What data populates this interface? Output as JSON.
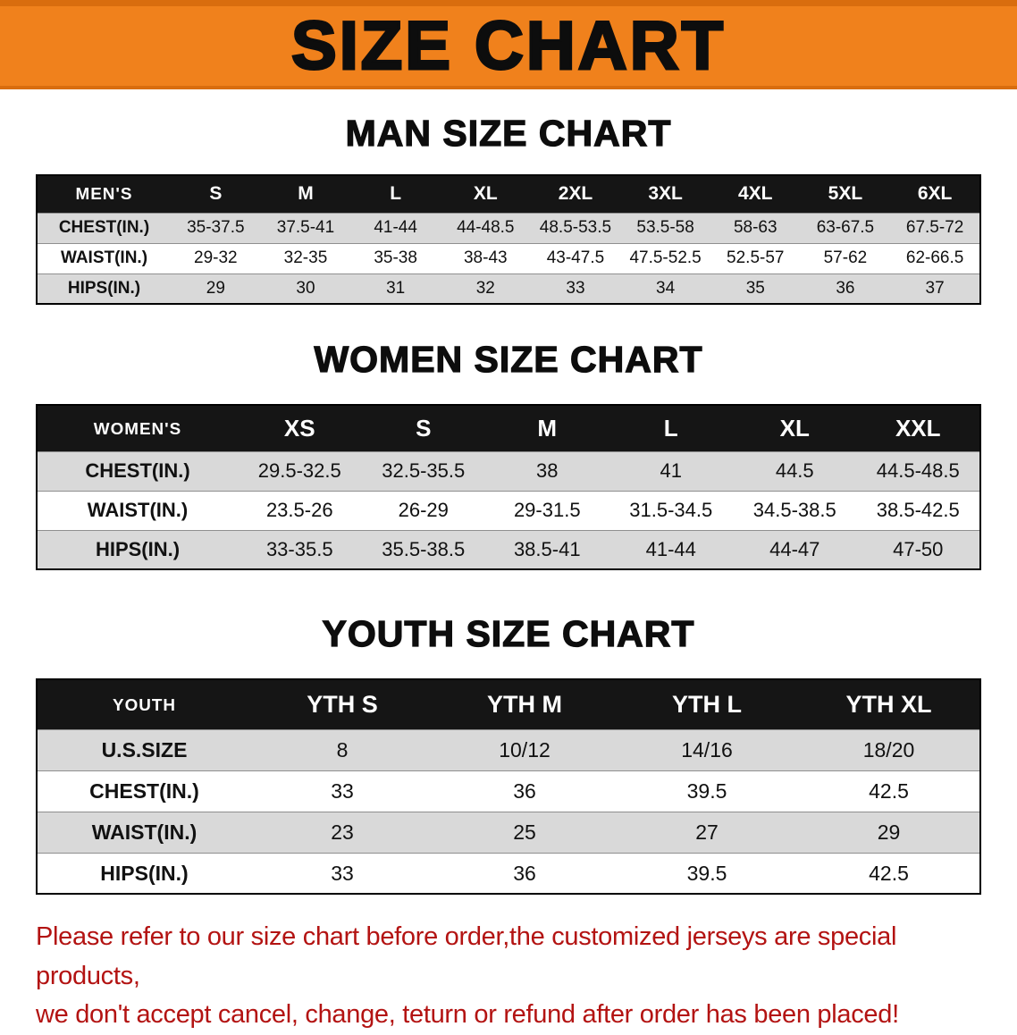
{
  "banner": {
    "title": "SIZE CHART"
  },
  "colors": {
    "banner_bg": "#f0811c",
    "banner_edge": "#d96d0e",
    "table_header_bg": "#151515",
    "table_header_text": "#ffffff",
    "row_gray": "#d9d9d9",
    "row_white": "#ffffff",
    "disclaimer_red": "#b31312"
  },
  "sections": [
    {
      "key": "men",
      "heading": "MAN SIZE CHART",
      "table": {
        "header": [
          "MEN'S",
          "S",
          "M",
          "L",
          "XL",
          "2XL",
          "3XL",
          "4XL",
          "5XL",
          "6XL"
        ],
        "rows": [
          [
            "CHEST(IN.)",
            "35-37.5",
            "37.5-41",
            "41-44",
            "44-48.5",
            "48.5-53.5",
            "53.5-58",
            "58-63",
            "63-67.5",
            "67.5-72"
          ],
          [
            "WAIST(IN.)",
            "29-32",
            "32-35",
            "35-38",
            "38-43",
            "43-47.5",
            "47.5-52.5",
            "52.5-57",
            "57-62",
            "62-66.5"
          ],
          [
            "HIPS(IN.)",
            "29",
            "30",
            "31",
            "32",
            "33",
            "34",
            "35",
            "36",
            "37"
          ]
        ]
      }
    },
    {
      "key": "women",
      "heading": "WOMEN SIZE CHART",
      "table": {
        "header": [
          "WOMEN'S",
          "XS",
          "S",
          "M",
          "L",
          "XL",
          "XXL"
        ],
        "rows": [
          [
            "CHEST(IN.)",
            "29.5-32.5",
            "32.5-35.5",
            "38",
            "41",
            "44.5",
            "44.5-48.5"
          ],
          [
            "WAIST(IN.)",
            "23.5-26",
            "26-29",
            "29-31.5",
            "31.5-34.5",
            "34.5-38.5",
            "38.5-42.5"
          ],
          [
            "HIPS(IN.)",
            "33-35.5",
            "35.5-38.5",
            "38.5-41",
            "41-44",
            "44-47",
            "47-50"
          ]
        ]
      }
    },
    {
      "key": "youth",
      "heading": "YOUTH SIZE CHART",
      "table": {
        "header": [
          "YOUTH",
          "YTH S",
          "YTH M",
          "YTH L",
          "YTH XL"
        ],
        "rows": [
          [
            "U.S.SIZE",
            "8",
            "10/12",
            "14/16",
            "18/20"
          ],
          [
            "CHEST(IN.)",
            "33",
            "36",
            "39.5",
            "42.5"
          ],
          [
            "WAIST(IN.)",
            "23",
            "25",
            "27",
            "29"
          ],
          [
            "HIPS(IN.)",
            "33",
            "36",
            "39.5",
            "42.5"
          ]
        ]
      }
    }
  ],
  "disclaimer": {
    "line1": "Please refer to our size chart before order,the customized jerseys are special products,",
    "line2": "we don't accept cancel, change, teturn or refund after order has been placed!"
  }
}
